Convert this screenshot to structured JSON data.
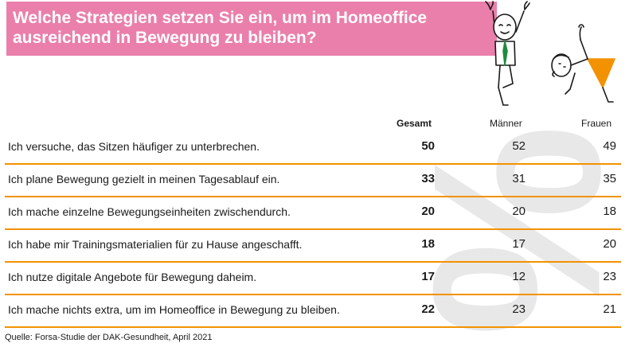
{
  "title": "Welche Strategien setzen Sie ein, um im Homeoffice ausreichend in Bewegung zu bleiben?",
  "headers": {
    "total": "Gesamt",
    "men": "Männer",
    "women": "Frauen"
  },
  "watermark": "%",
  "source": "Quelle: Forsa-Studie der DAK-Gesundheit, April 2021",
  "colors": {
    "title_band": "#ea7fab",
    "row_line": "#f39200",
    "watermark": "#d6d6d6"
  },
  "chart_data": {
    "type": "table",
    "title": "Welche Strategien setzen Sie ein, um im Homeoffice ausreichend in Bewegung zu bleiben?",
    "columns": [
      "Gesamt",
      "Männer",
      "Frauen"
    ],
    "rows": [
      {
        "label": "Ich versuche, das Sitzen häufiger zu unterbrechen.",
        "total": "50",
        "men": "52",
        "women": "49"
      },
      {
        "label": "Ich plane Bewegung gezielt in meinen Tagesablauf ein.",
        "total": "33",
        "men": "31",
        "women": "35"
      },
      {
        "label": "Ich mache einzelne Bewegungseinheiten zwischendurch.",
        "total": "20",
        "men": "20",
        "women": "18"
      },
      {
        "label": "Ich habe mir Trainingsmaterialien für zu Hause angeschafft.",
        "total": "18",
        "men": "17",
        "women": "20"
      },
      {
        "label": "Ich nutze digitale Angebote für Bewegung daheim.",
        "total": "17",
        "men": "12",
        "women": "23"
      },
      {
        "label": "Ich mache nichts extra, um im Homeoffice in Bewegung zu bleiben.",
        "total": "22",
        "men": "23",
        "women": "21"
      }
    ]
  }
}
